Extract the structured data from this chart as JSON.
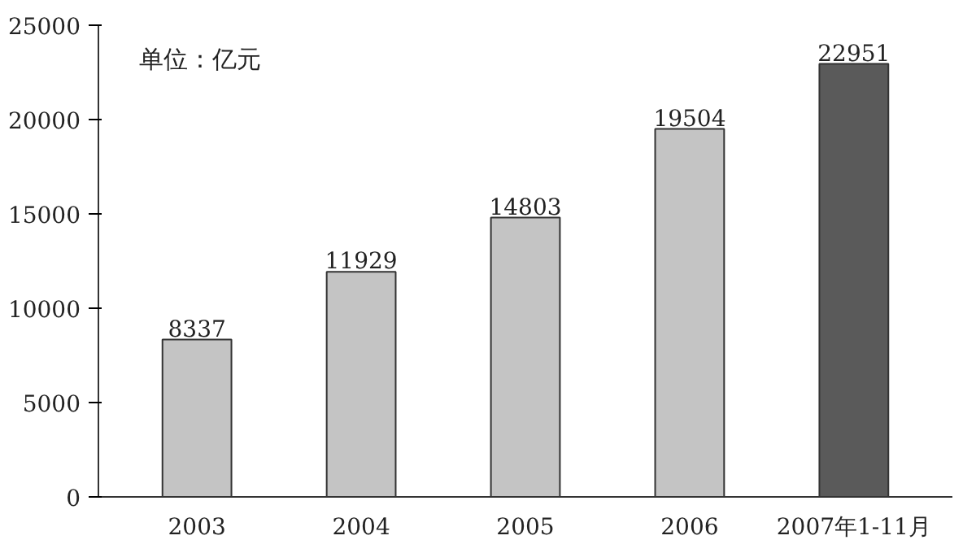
{
  "chart_data": {
    "type": "bar",
    "categories": [
      "2003",
      "2004",
      "2005",
      "2006",
      "2007年1-11月"
    ],
    "values": [
      8337,
      11929,
      14803,
      19504,
      22951
    ],
    "colors": [
      "#c4c4c4",
      "#c4c4c4",
      "#c4c4c4",
      "#c4c4c4",
      "#5a5a5a"
    ],
    "ylim": [
      0,
      25000
    ],
    "yticks": [
      0,
      5000,
      10000,
      15000,
      20000,
      25000
    ],
    "data_labels": true,
    "grid": false,
    "annotations": [
      "单位：亿元"
    ]
  }
}
